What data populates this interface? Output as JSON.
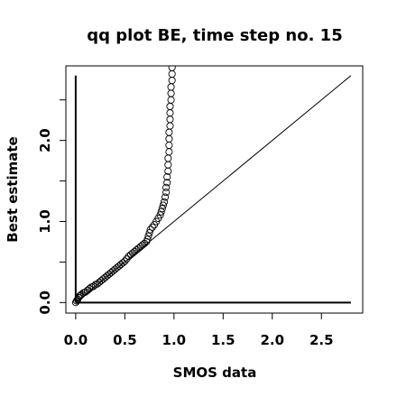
{
  "chart_data": {
    "type": "scatter",
    "title": "qq plot BE, time step no. 15",
    "xlabel": "SMOS data",
    "ylabel": "Best estimate",
    "xlim": [
      -0.1,
      2.92
    ],
    "ylim": [
      -0.13,
      2.92
    ],
    "x_ticks": [
      0.0,
      0.5,
      1.0,
      1.5,
      2.0,
      2.5
    ],
    "x_tick_labels": [
      "0.0",
      "0.5",
      "1.0",
      "1.5",
      "2.0",
      "2.5"
    ],
    "y_ticks": [
      0.0,
      0.5,
      1.0,
      1.5,
      2.0,
      2.5
    ],
    "y_tick_labels": [
      "0.0",
      "",
      "1.0",
      "",
      "2.0",
      ""
    ],
    "grid": false,
    "reference_lines": [
      {
        "type": "identity",
        "from": [
          0,
          0
        ],
        "to": [
          2.8,
          2.8
        ]
      },
      {
        "type": "vertical",
        "x": 0,
        "from_y": 0,
        "to_y": 2.8
      },
      {
        "type": "horizontal",
        "y": 0,
        "from_x": 0,
        "to_x": 2.8
      }
    ],
    "points": [
      [
        0.0,
        0.0
      ],
      [
        0.01,
        0.02
      ],
      [
        0.02,
        0.04
      ],
      [
        0.03,
        0.06
      ],
      [
        0.04,
        0.08
      ],
      [
        0.05,
        0.09
      ],
      [
        0.06,
        0.1
      ],
      [
        0.08,
        0.12
      ],
      [
        0.1,
        0.13
      ],
      [
        0.12,
        0.15
      ],
      [
        0.14,
        0.17
      ],
      [
        0.16,
        0.19
      ],
      [
        0.18,
        0.2
      ],
      [
        0.2,
        0.22
      ],
      [
        0.22,
        0.23
      ],
      [
        0.24,
        0.25
      ],
      [
        0.26,
        0.27
      ],
      [
        0.28,
        0.29
      ],
      [
        0.3,
        0.31
      ],
      [
        0.32,
        0.33
      ],
      [
        0.34,
        0.35
      ],
      [
        0.36,
        0.37
      ],
      [
        0.38,
        0.39
      ],
      [
        0.4,
        0.41
      ],
      [
        0.42,
        0.43
      ],
      [
        0.44,
        0.45
      ],
      [
        0.46,
        0.47
      ],
      [
        0.48,
        0.49
      ],
      [
        0.5,
        0.51
      ],
      [
        0.52,
        0.54
      ],
      [
        0.54,
        0.57
      ],
      [
        0.56,
        0.59
      ],
      [
        0.58,
        0.61
      ],
      [
        0.6,
        0.63
      ],
      [
        0.62,
        0.65
      ],
      [
        0.64,
        0.67
      ],
      [
        0.66,
        0.69
      ],
      [
        0.68,
        0.71
      ],
      [
        0.7,
        0.73
      ],
      [
        0.72,
        0.75
      ],
      [
        0.73,
        0.78
      ],
      [
        0.74,
        0.82
      ],
      [
        0.75,
        0.86
      ],
      [
        0.76,
        0.9
      ],
      [
        0.78,
        0.93
      ],
      [
        0.8,
        0.96
      ],
      [
        0.82,
        1.0
      ],
      [
        0.84,
        1.04
      ],
      [
        0.86,
        1.08
      ],
      [
        0.87,
        1.12
      ],
      [
        0.88,
        1.16
      ],
      [
        0.89,
        1.2
      ],
      [
        0.9,
        1.24
      ],
      [
        0.91,
        1.3
      ],
      [
        0.92,
        1.36
      ],
      [
        0.92,
        1.42
      ],
      [
        0.93,
        1.48
      ],
      [
        0.93,
        1.55
      ],
      [
        0.94,
        1.62
      ],
      [
        0.94,
        1.7
      ],
      [
        0.94,
        1.78
      ],
      [
        0.95,
        1.86
      ],
      [
        0.95,
        1.94
      ],
      [
        0.95,
        2.02
      ],
      [
        0.95,
        2.1
      ],
      [
        0.96,
        2.18
      ],
      [
        0.96,
        2.26
      ],
      [
        0.96,
        2.34
      ],
      [
        0.96,
        2.42
      ],
      [
        0.97,
        2.5
      ],
      [
        0.97,
        2.58
      ],
      [
        0.97,
        2.66
      ],
      [
        0.98,
        2.74
      ],
      [
        0.98,
        2.82
      ],
      [
        0.98,
        2.9
      ]
    ]
  }
}
